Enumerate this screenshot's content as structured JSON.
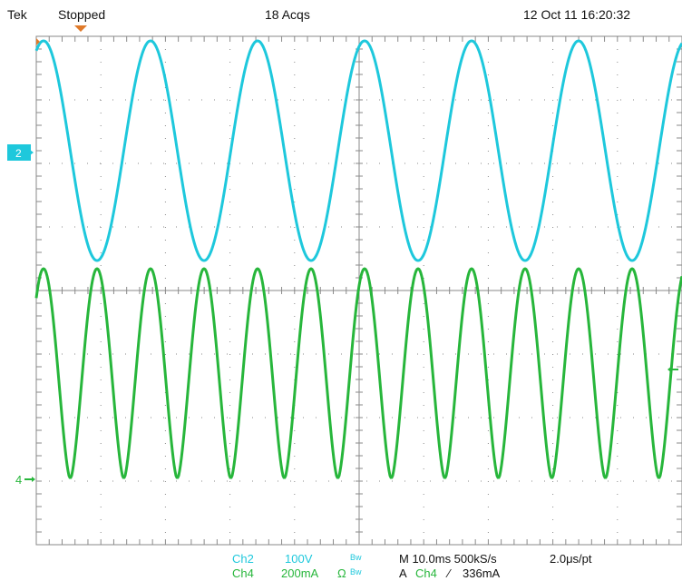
{
  "header": {
    "brand": "Tek",
    "status": "Stopped",
    "acquisitions": "18 Acqs",
    "datetime": "12 Oct 11 16:20:32"
  },
  "markers": {
    "ch2": "2",
    "ch4": "4"
  },
  "footer": {
    "ch2_label": "Ch2",
    "ch2_scale": "100V",
    "ch2_bw": "Bw",
    "ch4_label": "Ch4",
    "ch4_scale": "200mA",
    "ch4_coupling": "Ω",
    "ch4_bw": "Bw",
    "timebase": "M 10.0ms 500kS/s",
    "sample_interval": "2.0μs/pt",
    "trigger_prefix": "A",
    "trigger_source": "Ch4",
    "trigger_slope": "⁄",
    "trigger_level": "336mA"
  },
  "colors": {
    "ch2": "#1ec8dc",
    "ch4": "#27b63b",
    "graticule": "#8a8a8a",
    "trigger_marker": "#e07a2a"
  }
}
